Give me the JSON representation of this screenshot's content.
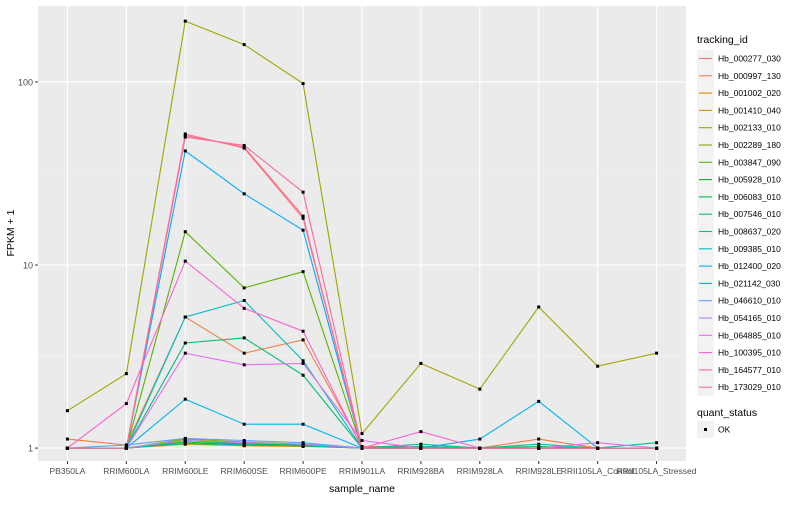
{
  "chart_data": {
    "type": "line",
    "xlabel": "sample_name",
    "ylabel": "FPKM + 1",
    "y_scale": "log10",
    "ylim": [
      0.85,
      260
    ],
    "y_ticks": [
      1,
      10,
      100
    ],
    "y_tick_labels": [
      "1",
      "10",
      "100"
    ],
    "grid": true,
    "legend_position": "right",
    "categories": [
      "PB350LA",
      "RRIM600LA",
      "RRIM600LE",
      "RRIM600SE",
      "RRIM600PE",
      "RRIM901LA",
      "RRIM928BA",
      "RRIM928LA",
      "RRIM928LE",
      "RRII105LA_Control",
      "RRII105LA_Stressed"
    ],
    "legend_color_title": "tracking_id",
    "legend_shape_title": "quant_status",
    "legend_shape_entries": [
      {
        "label": "OK",
        "shape": "square"
      }
    ],
    "series": [
      {
        "name": "Hb_000277_030",
        "color": "#F8766D",
        "values": [
          1.0,
          1.0,
          51.0,
          44.0,
          18.5,
          1.0,
          1.0,
          1.0,
          1.0,
          1.0,
          1.0
        ]
      },
      {
        "name": "Hb_000997_130",
        "color": "#EE8044",
        "values": [
          1.12,
          1.04,
          5.2,
          3.3,
          3.9,
          1.02,
          1.02,
          1.0,
          1.12,
          1.0,
          1.0
        ]
      },
      {
        "name": "Hb_001002_020",
        "color": "#E08B00",
        "values": [
          1.0,
          1.0,
          1.05,
          1.03,
          1.02,
          1.0,
          1.0,
          1.0,
          1.0,
          1.0,
          1.0
        ]
      },
      {
        "name": "Hb_001410_040",
        "color": "#CC9600",
        "values": [
          1.0,
          1.0,
          1.1,
          1.06,
          1.04,
          1.0,
          1.0,
          1.0,
          1.0,
          1.0,
          1.0
        ]
      },
      {
        "name": "Hb_002133_010",
        "color": "#A3A500",
        "values": [
          1.6,
          2.55,
          215.0,
          160.0,
          98.0,
          1.2,
          2.9,
          2.1,
          5.9,
          2.8,
          3.3
        ]
      },
      {
        "name": "Hb_002289_180",
        "color": "#85AD00",
        "values": [
          1.0,
          1.0,
          1.12,
          1.08,
          1.05,
          1.0,
          1.0,
          1.0,
          1.0,
          1.0,
          1.0
        ]
      },
      {
        "name": "Hb_003847_090",
        "color": "#5BB300",
        "values": [
          1.0,
          1.0,
          15.2,
          7.5,
          9.2,
          1.0,
          1.0,
          1.0,
          1.0,
          1.0,
          1.0
        ]
      },
      {
        "name": "Hb_005928_010",
        "color": "#00B81F",
        "values": [
          1.0,
          1.0,
          1.08,
          1.04,
          1.03,
          1.0,
          1.0,
          1.0,
          1.0,
          1.0,
          1.0
        ]
      },
      {
        "name": "Hb_006083_010",
        "color": "#00BB4E",
        "values": [
          1.0,
          1.0,
          1.1,
          1.05,
          1.04,
          1.0,
          1.0,
          1.0,
          1.02,
          1.0,
          1.0
        ]
      },
      {
        "name": "Hb_007546_010",
        "color": "#00BE70",
        "values": [
          1.0,
          1.0,
          3.75,
          4.0,
          2.5,
          1.0,
          1.02,
          1.0,
          1.0,
          1.0,
          1.0
        ]
      },
      {
        "name": "Hb_008637_020",
        "color": "#00C098",
        "values": [
          1.0,
          1.0,
          1.06,
          1.04,
          1.03,
          1.0,
          1.05,
          1.0,
          1.05,
          1.0,
          1.07
        ]
      },
      {
        "name": "Hb_009385_010",
        "color": "#00BFC4",
        "values": [
          1.0,
          1.0,
          5.2,
          6.4,
          3.0,
          1.0,
          1.0,
          1.0,
          1.0,
          1.0,
          1.0
        ]
      },
      {
        "name": "Hb_012400_020",
        "color": "#00B4F0",
        "values": [
          1.0,
          1.0,
          1.85,
          1.35,
          1.35,
          1.0,
          1.0,
          1.12,
          1.8,
          1.0,
          1.0
        ]
      },
      {
        "name": "Hb_021142_030",
        "color": "#00A9FF",
        "values": [
          1.0,
          1.0,
          42.0,
          24.5,
          15.5,
          1.0,
          1.0,
          1.0,
          1.0,
          1.0,
          1.0
        ]
      },
      {
        "name": "Hb_046610_010",
        "color": "#619CFF",
        "values": [
          1.0,
          1.04,
          1.13,
          1.1,
          1.07,
          1.0,
          1.0,
          1.0,
          1.0,
          1.0,
          1.0
        ]
      },
      {
        "name": "Hb_054165_010",
        "color": "#B983FF",
        "values": [
          1.0,
          1.0,
          1.1,
          1.07,
          1.05,
          1.0,
          1.0,
          1.0,
          1.0,
          1.0,
          1.0
        ]
      },
      {
        "name": "Hb_064885_010",
        "color": "#E76BF3",
        "values": [
          1.0,
          1.0,
          3.3,
          2.85,
          2.9,
          1.1,
          1.0,
          1.0,
          1.0,
          1.07,
          1.0
        ]
      },
      {
        "name": "Hb_100395_010",
        "color": "#FD61D1",
        "values": [
          1.0,
          1.75,
          10.5,
          5.8,
          4.35,
          1.0,
          1.23,
          1.0,
          1.0,
          1.0,
          1.0
        ]
      },
      {
        "name": "Hb_164577_010",
        "color": "#FF67A4",
        "values": [
          1.0,
          1.0,
          50.0,
          45.0,
          25.0,
          1.0,
          1.0,
          1.0,
          1.0,
          1.0,
          1.0
        ]
      },
      {
        "name": "Hb_173029_010",
        "color": "#FF6C91",
        "values": [
          1.0,
          1.0,
          52.0,
          43.5,
          18.0,
          1.0,
          1.0,
          1.0,
          1.0,
          1.0,
          1.0
        ]
      }
    ]
  }
}
